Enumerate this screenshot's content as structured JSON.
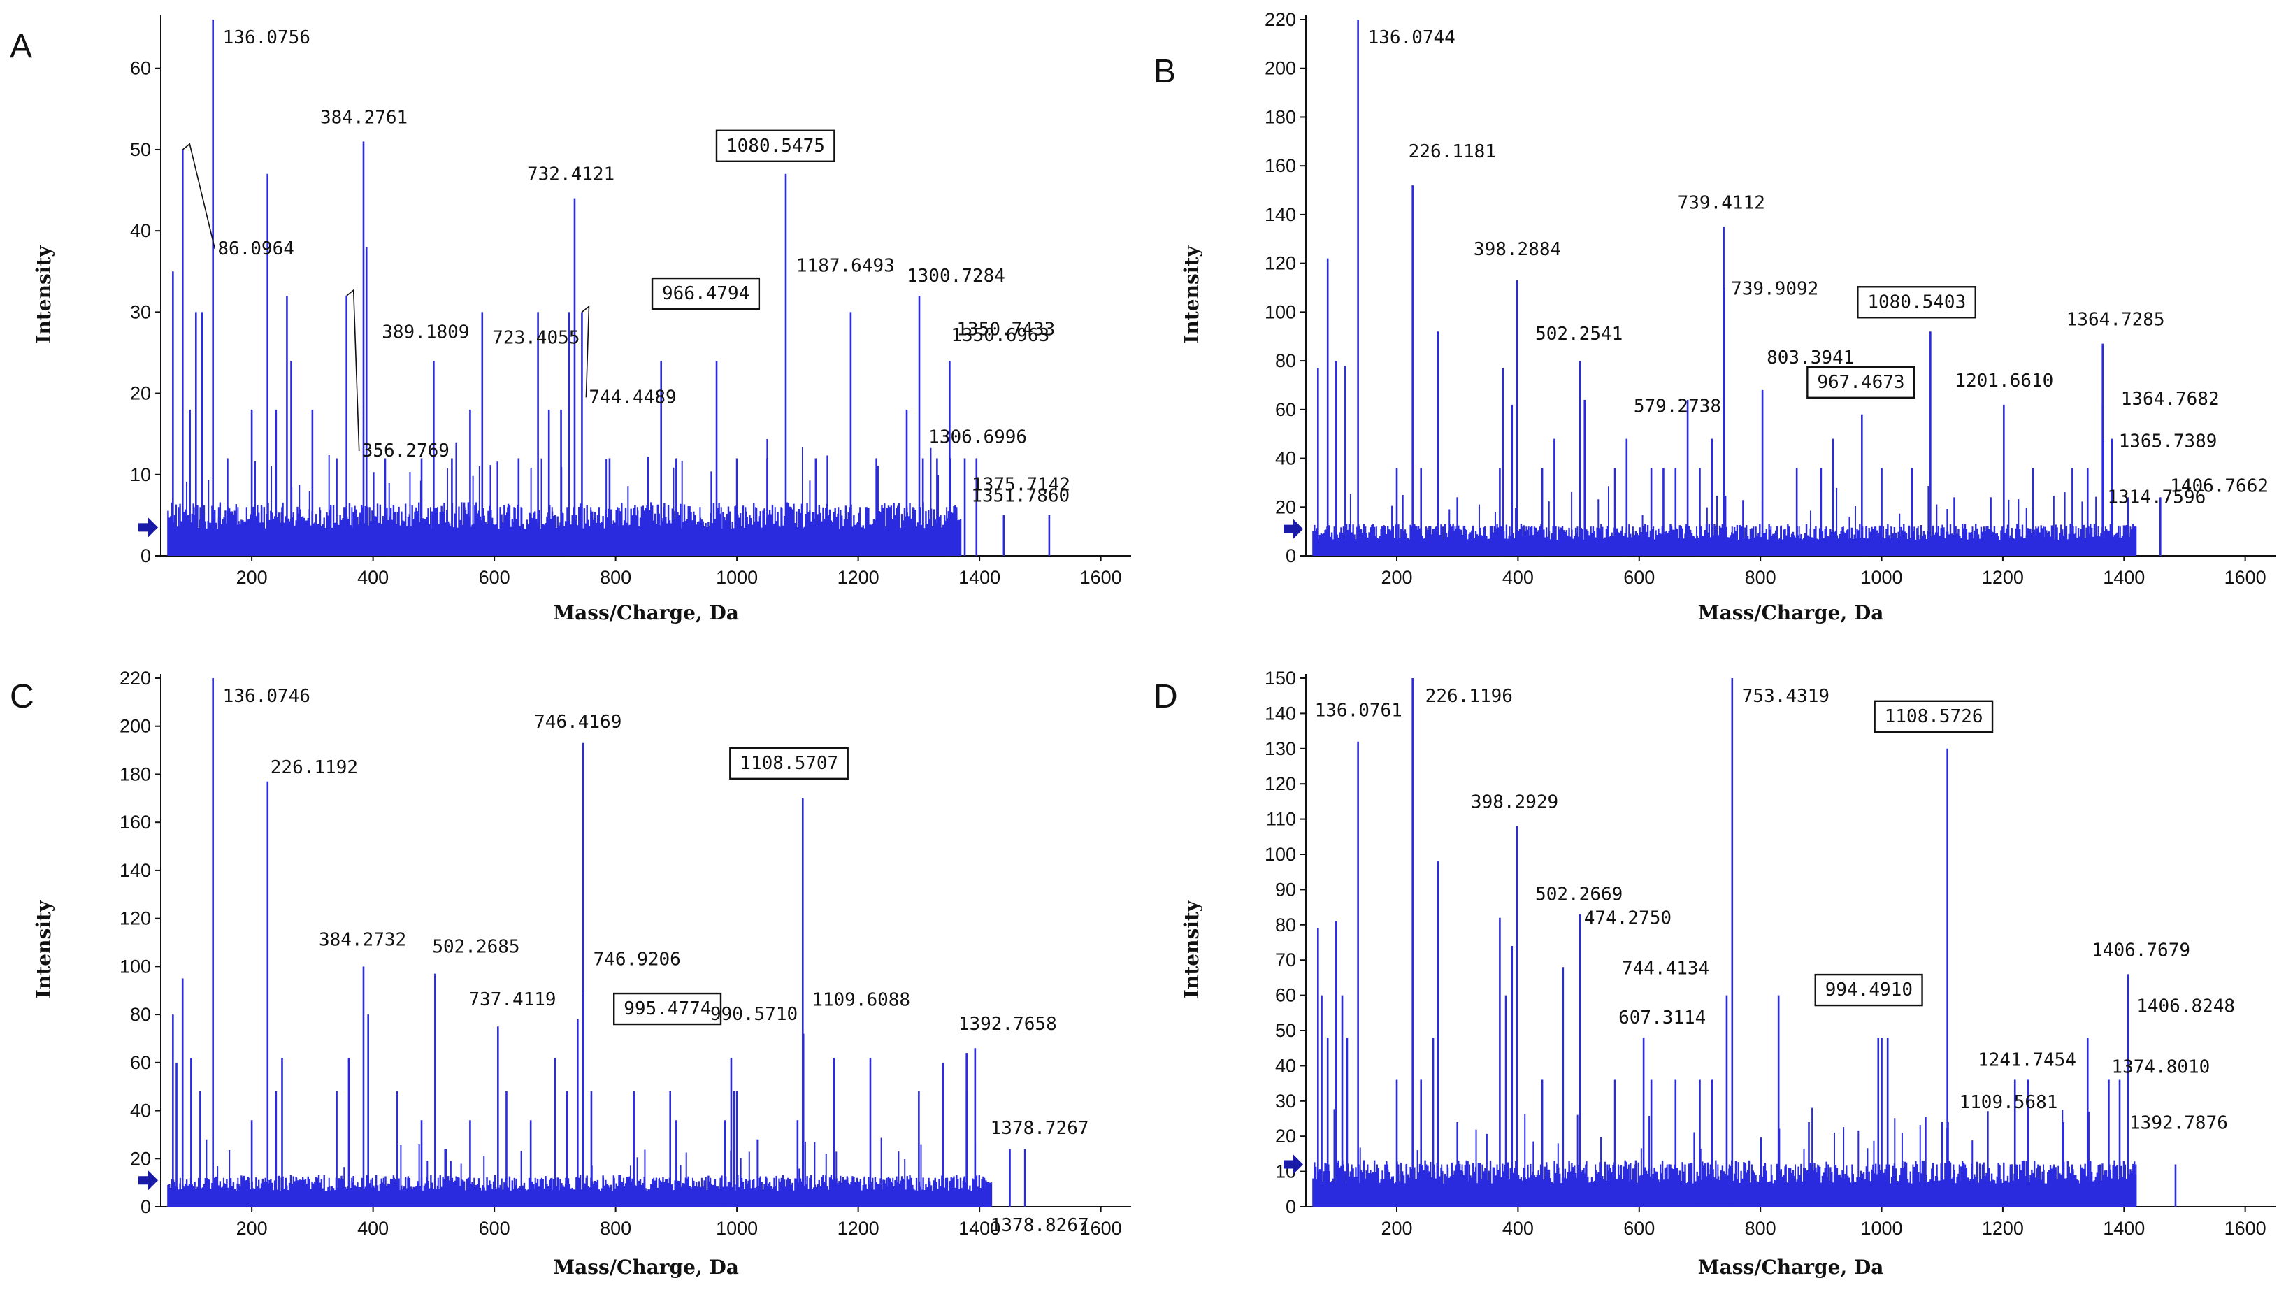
{
  "figure": {
    "colors": {
      "peak": "#2a2adf",
      "axis": "#111111",
      "box": "#111111",
      "marker": "#1a1aa8"
    }
  },
  "chart_data": [
    {
      "panel": "A",
      "type": "bar",
      "xlabel": "Mass/Charge, Da",
      "ylabel": "Intensity",
      "xlim": [
        50,
        1650
      ],
      "ylim": [
        0,
        66
      ],
      "xticks": [
        200,
        400,
        600,
        800,
        1000,
        1200,
        1400,
        1600
      ],
      "yticks": [
        0,
        10,
        20,
        30,
        40,
        50,
        60
      ],
      "noise_level": 6,
      "noise_end": 1370,
      "arrow_y": 3.5,
      "peaks": [
        [
          70,
          35
        ],
        [
          86.0964,
          50
        ],
        [
          98,
          18
        ],
        [
          108,
          30
        ],
        [
          118,
          30
        ],
        [
          136.0756,
          66
        ],
        [
          160,
          12
        ],
        [
          200,
          18
        ],
        [
          226,
          47
        ],
        [
          240,
          18
        ],
        [
          258,
          32
        ],
        [
          265,
          24
        ],
        [
          300,
          18
        ],
        [
          340,
          12
        ],
        [
          356.2769,
          32
        ],
        [
          384.2761,
          51
        ],
        [
          389.1809,
          38
        ],
        [
          420,
          12
        ],
        [
          480,
          12
        ],
        [
          500,
          24
        ],
        [
          530,
          12
        ],
        [
          560,
          18
        ],
        [
          580,
          30
        ],
        [
          640,
          12
        ],
        [
          672,
          30
        ],
        [
          690,
          18
        ],
        [
          710,
          18
        ],
        [
          723.4055,
          30
        ],
        [
          732.4121,
          44
        ],
        [
          744.4489,
          30
        ],
        [
          790,
          12
        ],
        [
          875,
          24
        ],
        [
          900,
          12
        ],
        [
          966.4794,
          24
        ],
        [
          1000,
          12
        ],
        [
          1050,
          12
        ],
        [
          1080.5475,
          47
        ],
        [
          1130,
          12
        ],
        [
          1187.6493,
          30
        ],
        [
          1230,
          12
        ],
        [
          1280,
          18
        ],
        [
          1300.7284,
          32
        ],
        [
          1306.6996,
          12
        ],
        [
          1330,
          12
        ],
        [
          1350.6963,
          24
        ],
        [
          1351.786,
          12
        ],
        [
          1375.7142,
          12
        ],
        [
          1395,
          12
        ],
        [
          1440,
          5
        ],
        [
          1515,
          5
        ]
      ],
      "labels": [
        {
          "text": "136.0756",
          "mz": 136.0756,
          "boxed": false
        },
        {
          "text": "86.0964",
          "mz": 86.0964,
          "boxed": false
        },
        {
          "text": "384.2761",
          "mz": 384.2761,
          "boxed": false
        },
        {
          "text": "389.1809",
          "mz": 389.1809,
          "boxed": false
        },
        {
          "text": "356.2769",
          "mz": 356.2769,
          "boxed": false
        },
        {
          "text": "732.4121",
          "mz": 732.4121,
          "boxed": false
        },
        {
          "text": "723.4055",
          "mz": 723.4055,
          "boxed": false
        },
        {
          "text": "744.4489",
          "mz": 744.4489,
          "boxed": false
        },
        {
          "text": "1080.5475",
          "mz": 1080.5475,
          "boxed": true
        },
        {
          "text": "966.4794",
          "mz": 966.4794,
          "boxed": true
        },
        {
          "text": "1187.6493",
          "mz": 1187.6493,
          "boxed": false
        },
        {
          "text": "1300.7284",
          "mz": 1300.7284,
          "boxed": false
        },
        {
          "text": "1350.6963",
          "mz": 1350.6963,
          "boxed": false
        },
        {
          "text": "1350.7433",
          "mz": 1350.7433,
          "boxed": false
        },
        {
          "text": "1306.6996",
          "mz": 1306.6996,
          "boxed": false
        },
        {
          "text": "1375.7142",
          "mz": 1375.7142,
          "boxed": false
        },
        {
          "text": "1351.7860",
          "mz": 1351.786,
          "boxed": false
        }
      ]
    },
    {
      "panel": "B",
      "type": "bar",
      "xlabel": "Mass/Charge, Da",
      "ylabel": "Intensity",
      "xlim": [
        50,
        1650
      ],
      "ylim": [
        0,
        220
      ],
      "xticks": [
        200,
        400,
        600,
        800,
        1000,
        1200,
        1400,
        1600
      ],
      "yticks": [
        0,
        20,
        40,
        60,
        80,
        100,
        120,
        140,
        160,
        180,
        200,
        220
      ],
      "noise_level": 12,
      "noise_end": 1420,
      "arrow_y": 11,
      "peaks": [
        [
          70,
          77
        ],
        [
          86,
          122
        ],
        [
          100,
          80
        ],
        [
          115,
          78
        ],
        [
          136.0744,
          220
        ],
        [
          200,
          36
        ],
        [
          226.1181,
          152
        ],
        [
          240,
          36
        ],
        [
          268,
          92
        ],
        [
          300,
          24
        ],
        [
          370,
          36
        ],
        [
          375,
          77
        ],
        [
          390,
          62
        ],
        [
          398.2884,
          113
        ],
        [
          440,
          36
        ],
        [
          460,
          48
        ],
        [
          502.2541,
          80
        ],
        [
          510,
          64
        ],
        [
          560,
          36
        ],
        [
          579.2738,
          48
        ],
        [
          620,
          36
        ],
        [
          640,
          36
        ],
        [
          660,
          36
        ],
        [
          680,
          64
        ],
        [
          700,
          36
        ],
        [
          720,
          48
        ],
        [
          739.4112,
          135
        ],
        [
          739.9092,
          110
        ],
        [
          803.3941,
          68
        ],
        [
          860,
          36
        ],
        [
          900,
          36
        ],
        [
          920,
          48
        ],
        [
          967.4673,
          58
        ],
        [
          1000,
          36
        ],
        [
          1050,
          36
        ],
        [
          1080.5403,
          92
        ],
        [
          1120,
          24
        ],
        [
          1180,
          24
        ],
        [
          1201.661,
          62
        ],
        [
          1250,
          36
        ],
        [
          1314.7596,
          36
        ],
        [
          1340,
          36
        ],
        [
          1364.7285,
          87
        ],
        [
          1364.7682,
          62
        ],
        [
          1365.7389,
          48
        ],
        [
          1380,
          48
        ],
        [
          1406.7662,
          24
        ],
        [
          1460,
          24
        ]
      ],
      "labels": [
        {
          "text": "136.0744",
          "mz": 136.0744,
          "boxed": false
        },
        {
          "text": "226.1181",
          "mz": 226.1181,
          "boxed": false
        },
        {
          "text": "398.2884",
          "mz": 398.2884,
          "boxed": false
        },
        {
          "text": "502.2541",
          "mz": 502.2541,
          "boxed": false
        },
        {
          "text": "579.2738",
          "mz": 579.2738,
          "boxed": false
        },
        {
          "text": "739.4112",
          "mz": 739.4112,
          "boxed": false
        },
        {
          "text": "739.9092",
          "mz": 739.9092,
          "boxed": false
        },
        {
          "text": "803.3941",
          "mz": 803.3941,
          "boxed": false
        },
        {
          "text": "1080.5403",
          "mz": 1080.5403,
          "boxed": true
        },
        {
          "text": "967.4673",
          "mz": 967.4673,
          "boxed": true
        },
        {
          "text": "1201.6610",
          "mz": 1201.661,
          "boxed": false
        },
        {
          "text": "1364.7285",
          "mz": 1364.7285,
          "boxed": false
        },
        {
          "text": "1364.7682",
          "mz": 1364.7682,
          "boxed": false
        },
        {
          "text": "1365.7389",
          "mz": 1365.7389,
          "boxed": false
        },
        {
          "text": "1314.7596",
          "mz": 1314.7596,
          "boxed": false
        },
        {
          "text": "1406.7662",
          "mz": 1406.7662,
          "boxed": false
        }
      ]
    },
    {
      "panel": "C",
      "type": "bar",
      "xlabel": "Mass/Charge, Da",
      "ylabel": "Intensity",
      "xlim": [
        50,
        1650
      ],
      "ylim": [
        0,
        220
      ],
      "xticks": [
        200,
        400,
        600,
        800,
        1000,
        1200,
        1400,
        1600
      ],
      "yticks": [
        0,
        20,
        40,
        60,
        80,
        100,
        120,
        140,
        160,
        180,
        200,
        220
      ],
      "noise_level": 12,
      "noise_end": 1420,
      "arrow_y": 11,
      "peaks": [
        [
          70,
          80
        ],
        [
          76,
          60
        ],
        [
          86,
          95
        ],
        [
          100,
          62
        ],
        [
          115,
          48
        ],
        [
          136.0746,
          220
        ],
        [
          200,
          36
        ],
        [
          226.1192,
          177
        ],
        [
          240,
          48
        ],
        [
          250,
          62
        ],
        [
          340,
          48
        ],
        [
          360,
          62
        ],
        [
          384.2732,
          100
        ],
        [
          392,
          80
        ],
        [
          440,
          48
        ],
        [
          480,
          36
        ],
        [
          502.2685,
          97
        ],
        [
          520,
          24
        ],
        [
          560,
          36
        ],
        [
          606,
          75
        ],
        [
          620,
          48
        ],
        [
          660,
          36
        ],
        [
          700,
          62
        ],
        [
          720,
          48
        ],
        [
          737.4119,
          78
        ],
        [
          746.4169,
          193
        ],
        [
          746.9206,
          90
        ],
        [
          760,
          48
        ],
        [
          830,
          48
        ],
        [
          890,
          48
        ],
        [
          900,
          36
        ],
        [
          980,
          36
        ],
        [
          990.571,
          62
        ],
        [
          995.4774,
          48
        ],
        [
          1000,
          48
        ],
        [
          1100,
          36
        ],
        [
          1108.5707,
          170
        ],
        [
          1109.6088,
          72
        ],
        [
          1160,
          62
        ],
        [
          1220,
          62
        ],
        [
          1300,
          48
        ],
        [
          1340,
          60
        ],
        [
          1378.7267,
          64
        ],
        [
          1378.8267,
          48
        ],
        [
          1392.7658,
          66
        ],
        [
          1450,
          24
        ],
        [
          1475,
          24
        ]
      ],
      "labels": [
        {
          "text": "136.0746",
          "mz": 136.0746,
          "boxed": false
        },
        {
          "text": "226.1192",
          "mz": 226.1192,
          "boxed": false
        },
        {
          "text": "384.2732",
          "mz": 384.2732,
          "boxed": false
        },
        {
          "text": "502.2685",
          "mz": 502.2685,
          "boxed": false
        },
        {
          "text": "746.4169",
          "mz": 746.4169,
          "boxed": false
        },
        {
          "text": "737.4119",
          "mz": 737.4119,
          "boxed": false
        },
        {
          "text": "746.9206",
          "mz": 746.9206,
          "boxed": false
        },
        {
          "text": "1108.5707",
          "mz": 1108.5707,
          "boxed": true
        },
        {
          "text": "990.5710",
          "mz": 990.571,
          "boxed": false
        },
        {
          "text": "995.4774",
          "mz": 995.4774,
          "boxed": true
        },
        {
          "text": "1109.6088",
          "mz": 1109.6088,
          "boxed": false
        },
        {
          "text": "1392.7658",
          "mz": 1392.7658,
          "boxed": false
        },
        {
          "text": "1378.7267",
          "mz": 1378.7267,
          "boxed": false
        },
        {
          "text": "1378.8267",
          "mz": 1378.8267,
          "boxed": false
        }
      ]
    },
    {
      "panel": "D",
      "type": "bar",
      "xlabel": "Mass/Charge, Da",
      "ylabel": "Intensity",
      "xlim": [
        50,
        1650
      ],
      "ylim": [
        0,
        150
      ],
      "xticks": [
        200,
        400,
        600,
        800,
        1000,
        1200,
        1400,
        1600
      ],
      "yticks": [
        0,
        10,
        20,
        30,
        40,
        50,
        60,
        70,
        80,
        90,
        100,
        110,
        120,
        130,
        140,
        150
      ],
      "noise_level": 12,
      "noise_end": 1420,
      "arrow_y": 12,
      "peaks": [
        [
          70,
          79
        ],
        [
          76,
          60
        ],
        [
          86,
          48
        ],
        [
          100,
          81
        ],
        [
          110,
          60
        ],
        [
          118,
          48
        ],
        [
          136.0761,
          132
        ],
        [
          200,
          36
        ],
        [
          226.1196,
          150
        ],
        [
          240,
          36
        ],
        [
          260,
          48
        ],
        [
          268,
          98
        ],
        [
          300,
          24
        ],
        [
          370,
          82
        ],
        [
          380,
          60
        ],
        [
          390,
          74
        ],
        [
          398.2929,
          108
        ],
        [
          440,
          36
        ],
        [
          474.275,
          68
        ],
        [
          502.2669,
          83
        ],
        [
          560,
          36
        ],
        [
          607.3114,
          48
        ],
        [
          620,
          36
        ],
        [
          660,
          36
        ],
        [
          700,
          36
        ],
        [
          720,
          36
        ],
        [
          744.4134,
          60
        ],
        [
          753.4319,
          150
        ],
        [
          830,
          60
        ],
        [
          880,
          24
        ],
        [
          994.491,
          48
        ],
        [
          1000,
          48
        ],
        [
          1010,
          48
        ],
        [
          1100,
          24
        ],
        [
          1108.5726,
          130
        ],
        [
          1109.5681,
          24
        ],
        [
          1220,
          36
        ],
        [
          1241.7454,
          36
        ],
        [
          1300,
          24
        ],
        [
          1340,
          48
        ],
        [
          1374.801,
          36
        ],
        [
          1392.7876,
          36
        ],
        [
          1406.7679,
          66
        ],
        [
          1406.8248,
          60
        ],
        [
          1485,
          12
        ]
      ],
      "labels": [
        {
          "text": "136.0761",
          "mz": 136.0761,
          "boxed": false
        },
        {
          "text": "226.1196",
          "mz": 226.1196,
          "boxed": false
        },
        {
          "text": "398.2929",
          "mz": 398.2929,
          "boxed": false
        },
        {
          "text": "502.2669",
          "mz": 502.2669,
          "boxed": false
        },
        {
          "text": "474.2750",
          "mz": 474.275,
          "boxed": false
        },
        {
          "text": "744.4134",
          "mz": 744.4134,
          "boxed": false
        },
        {
          "text": "607.3114",
          "mz": 607.3114,
          "boxed": false
        },
        {
          "text": "753.4319",
          "mz": 753.4319,
          "boxed": false
        },
        {
          "text": "1108.5726",
          "mz": 1108.5726,
          "boxed": true
        },
        {
          "text": "994.4910",
          "mz": 994.491,
          "boxed": true
        },
        {
          "text": "1109.5681",
          "mz": 1109.5681,
          "boxed": false
        },
        {
          "text": "1406.7679",
          "mz": 1406.7679,
          "boxed": false
        },
        {
          "text": "1406.8248",
          "mz": 1406.8248,
          "boxed": false
        },
        {
          "text": "1241.7454",
          "mz": 1241.7454,
          "boxed": false
        },
        {
          "text": "1374.8010",
          "mz": 1374.801,
          "boxed": false
        },
        {
          "text": "1392.7876",
          "mz": 1392.7876,
          "boxed": false
        }
      ]
    }
  ]
}
